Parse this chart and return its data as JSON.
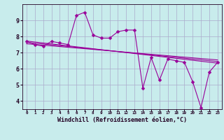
{
  "xlabel": "Windchill (Refroidissement éolien,°C)",
  "background_color": "#c8ecec",
  "grid_color": "#aaaacc",
  "line_color": "#990099",
  "spine_color": "#220022",
  "xlim": [
    -0.5,
    23.5
  ],
  "ylim": [
    3.5,
    10.0
  ],
  "yticks": [
    4,
    5,
    6,
    7,
    8,
    9
  ],
  "xticks": [
    0,
    1,
    2,
    3,
    4,
    5,
    6,
    7,
    8,
    9,
    10,
    11,
    12,
    13,
    14,
    15,
    16,
    17,
    18,
    19,
    20,
    21,
    22,
    23
  ],
  "series1": {
    "x": [
      0,
      1,
      2,
      3,
      4,
      5,
      6,
      7,
      8,
      9,
      10,
      11,
      12,
      13,
      14,
      15,
      16,
      17,
      18,
      19,
      20,
      21,
      22,
      23
    ],
    "y": [
      7.7,
      7.5,
      7.4,
      7.7,
      7.6,
      7.5,
      9.3,
      9.5,
      8.1,
      7.9,
      7.9,
      8.3,
      8.4,
      8.4,
      4.8,
      6.7,
      5.3,
      6.6,
      6.5,
      6.4,
      5.2,
      3.6,
      5.8,
      6.4
    ]
  },
  "series2": {
    "x": [
      0,
      23
    ],
    "y": [
      7.72,
      6.35
    ]
  },
  "series3": {
    "x": [
      0,
      23
    ],
    "y": [
      7.55,
      6.55
    ]
  },
  "series4": {
    "x": [
      0,
      23
    ],
    "y": [
      7.64,
      6.45
    ]
  },
  "markersize": 2.5,
  "linewidth": 0.8,
  "xlabel_fontsize": 6.0,
  "tick_fontsize_x": 4.2,
  "tick_fontsize_y": 6.0
}
